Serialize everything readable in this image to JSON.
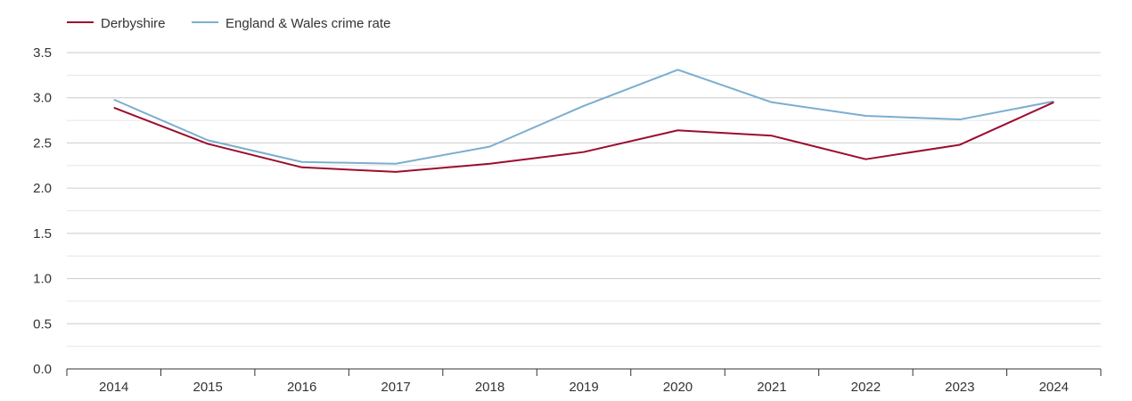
{
  "chart_data": {
    "type": "line",
    "title": "",
    "xlabel": "",
    "ylabel": "",
    "categories": [
      "2014",
      "2015",
      "2016",
      "2017",
      "2018",
      "2019",
      "2020",
      "2021",
      "2022",
      "2023",
      "2024"
    ],
    "ylim": [
      0,
      3.5
    ],
    "yticks": [
      "0.0",
      "0.5",
      "1.0",
      "1.5",
      "2.0",
      "2.5",
      "3.0",
      "3.5"
    ],
    "grid": true,
    "legend_position": "top-left",
    "series": [
      {
        "name": "Derbyshire",
        "color": "#9b0d2e",
        "values": [
          2.89,
          2.49,
          2.23,
          2.18,
          2.27,
          2.4,
          2.64,
          2.58,
          2.32,
          2.48,
          2.95
        ]
      },
      {
        "name": "England & Wales crime rate",
        "color": "#7aaed0",
        "values": [
          2.98,
          2.53,
          2.29,
          2.27,
          2.46,
          2.91,
          3.31,
          2.95,
          2.8,
          2.76,
          2.96
        ]
      }
    ]
  }
}
